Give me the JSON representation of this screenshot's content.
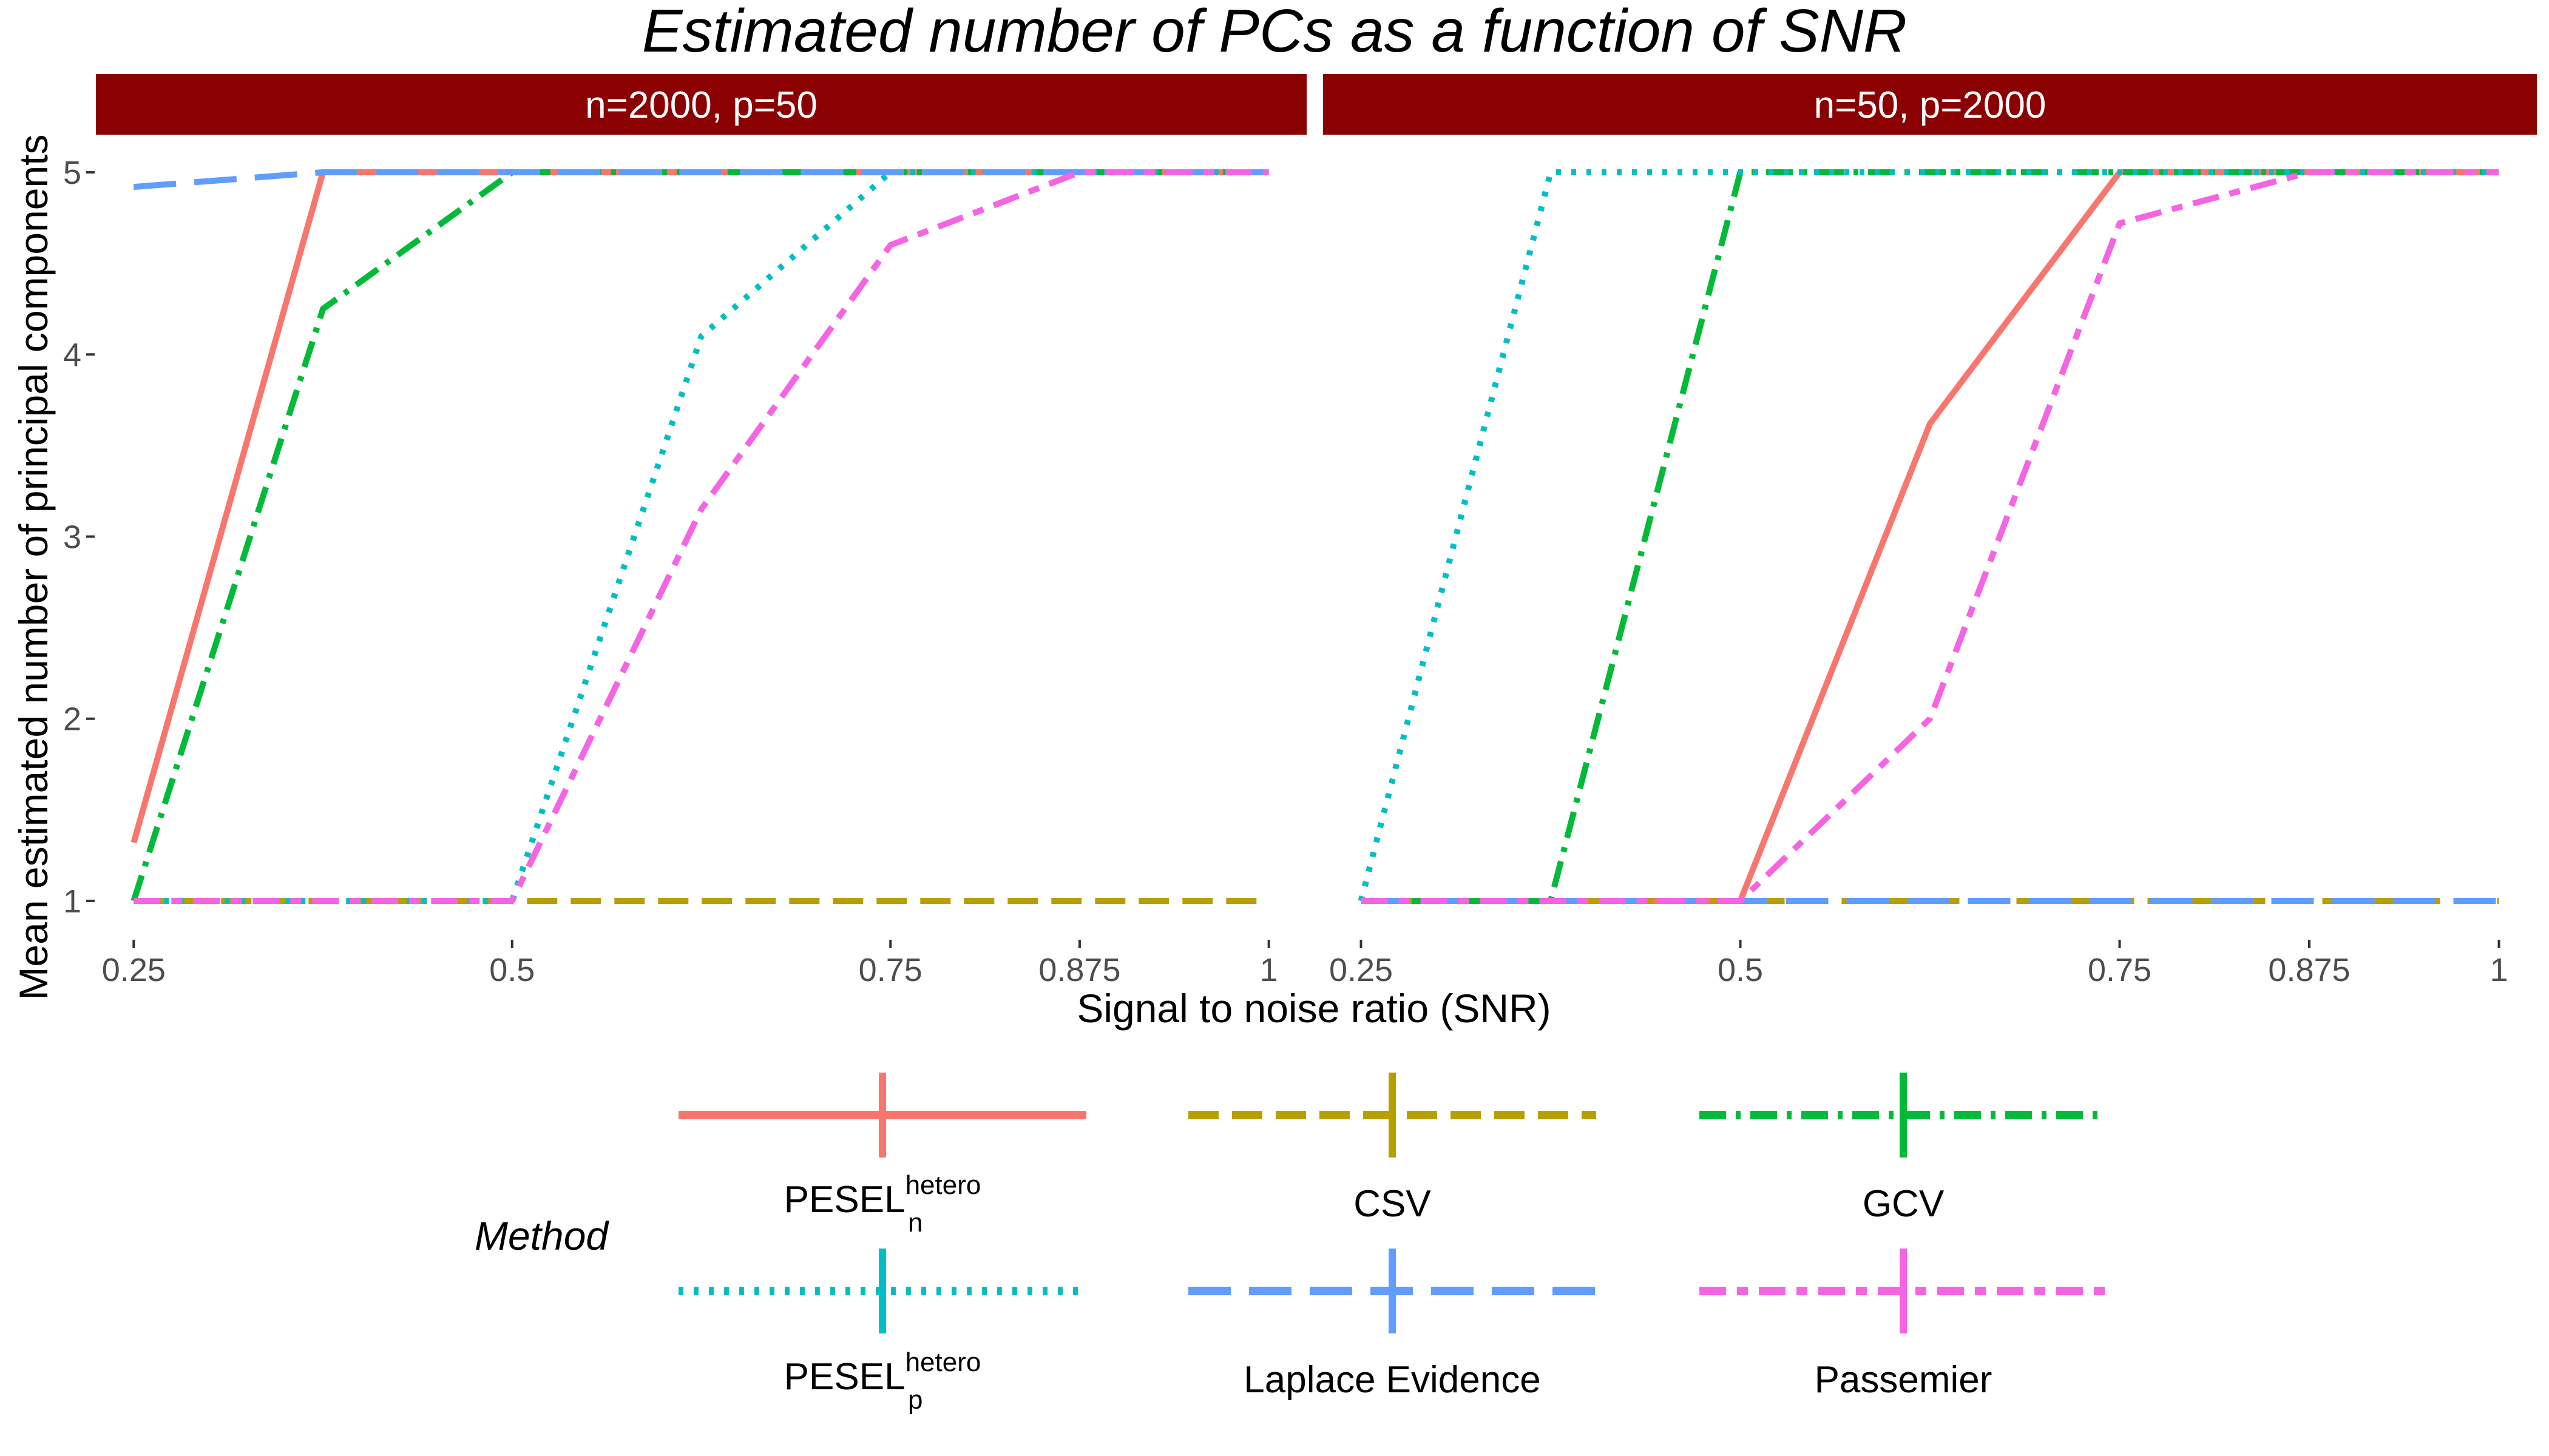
{
  "chart_data": {
    "type": "line",
    "title": "Estimated number of PCs as a function of SNR",
    "xlabel": "Signal to noise ratio (SNR)",
    "ylabel": "Mean estimated number of principal components",
    "x_ticks": [
      0.25,
      0.5,
      0.75,
      0.875,
      1
    ],
    "x_tick_labels": [
      "0.25",
      "0.5",
      "0.75",
      "0.875",
      "1"
    ],
    "y_ticks": [
      1,
      2,
      3,
      4,
      5
    ],
    "y_tick_labels": [
      "1",
      "2",
      "3",
      "4",
      "5"
    ],
    "xlim": [
      0.225,
      1.025
    ],
    "ylim": [
      0.8,
      5.2
    ],
    "legend": {
      "title": "Method",
      "entries": [
        {
          "key": "pesel_n",
          "base": "PESEL",
          "sup": "hetero",
          "sub": "n"
        },
        {
          "key": "csv",
          "label": "CSV"
        },
        {
          "key": "gcv",
          "label": "GCV"
        },
        {
          "key": "pesel_p",
          "base": "PESEL",
          "sup": "hetero",
          "sub": "p"
        },
        {
          "key": "laplace",
          "label": "Laplace Evidence"
        },
        {
          "key": "passemier",
          "label": "Passemier"
        }
      ]
    },
    "styles": {
      "pesel_n": {
        "color": "#F8766D",
        "dash": ""
      },
      "csv": {
        "color": "#B79F00",
        "dash": "50,22"
      },
      "gcv": {
        "color": "#00BA38",
        "dash": "44,16,8,16"
      },
      "pesel_p": {
        "color": "#00BFC4",
        "dash": "8,17"
      },
      "laplace": {
        "color": "#619CFF",
        "dash": "70,30"
      },
      "passemier": {
        "color": "#F564E3",
        "dash": "44,18,18,18"
      }
    },
    "panels": [
      {
        "label": "n=2000, p=50",
        "x": [
          0.25,
          0.375,
          0.5,
          0.625,
          0.75,
          0.875,
          1
        ],
        "series": [
          {
            "key": "pesel_n",
            "name": "PESEL_n^hetero",
            "values": [
              1.32,
              5.0,
              5.0,
              5.0,
              5.0,
              5.0,
              5.0
            ]
          },
          {
            "key": "csv",
            "name": "CSV",
            "values": [
              1.0,
              1.0,
              1.0,
              1.0,
              1.0,
              1.0,
              1.0
            ]
          },
          {
            "key": "gcv",
            "name": "GCV",
            "values": [
              1.0,
              4.25,
              5.0,
              5.0,
              5.0,
              5.0,
              5.0
            ]
          },
          {
            "key": "pesel_p",
            "name": "PESEL_p^hetero",
            "values": [
              1.0,
              1.0,
              1.0,
              4.1,
              5.0,
              5.0,
              5.0
            ]
          },
          {
            "key": "laplace",
            "name": "Laplace Evidence",
            "values": [
              4.92,
              5.0,
              5.0,
              5.0,
              5.0,
              5.0,
              5.0
            ]
          },
          {
            "key": "passemier",
            "name": "Passemier",
            "values": [
              1.0,
              1.0,
              1.0,
              3.15,
              4.6,
              5.0,
              5.0
            ]
          }
        ]
      },
      {
        "label": "n=50, p=2000",
        "x": [
          0.25,
          0.375,
          0.5,
          0.625,
          0.75,
          0.875,
          1
        ],
        "series": [
          {
            "key": "pesel_n",
            "name": "PESEL_n^hetero",
            "values": [
              1.0,
              1.0,
              1.0,
              3.62,
              5.0,
              5.0,
              5.0
            ]
          },
          {
            "key": "csv",
            "name": "CSV",
            "values": [
              1.0,
              1.0,
              1.0,
              1.0,
              1.0,
              1.0,
              1.0
            ]
          },
          {
            "key": "gcv",
            "name": "GCV",
            "values": [
              1.0,
              1.0,
              5.0,
              5.0,
              5.0,
              5.0,
              5.0
            ]
          },
          {
            "key": "pesel_p",
            "name": "PESEL_p^hetero",
            "values": [
              1.0,
              5.0,
              5.0,
              5.0,
              5.0,
              5.0,
              5.0
            ]
          },
          {
            "key": "laplace",
            "name": "Laplace Evidence",
            "values": [
              1.0,
              1.0,
              1.0,
              1.0,
              1.0,
              1.0,
              1.0
            ]
          },
          {
            "key": "passemier",
            "name": "Passemier",
            "values": [
              1.0,
              1.0,
              1.0,
              2.0,
              4.72,
              5.0,
              5.0
            ]
          }
        ]
      }
    ],
    "colors": {
      "strip_bg": "#8B0000",
      "strip_text": "#FFFFFF",
      "tick_text": "#4D4D4D"
    }
  }
}
